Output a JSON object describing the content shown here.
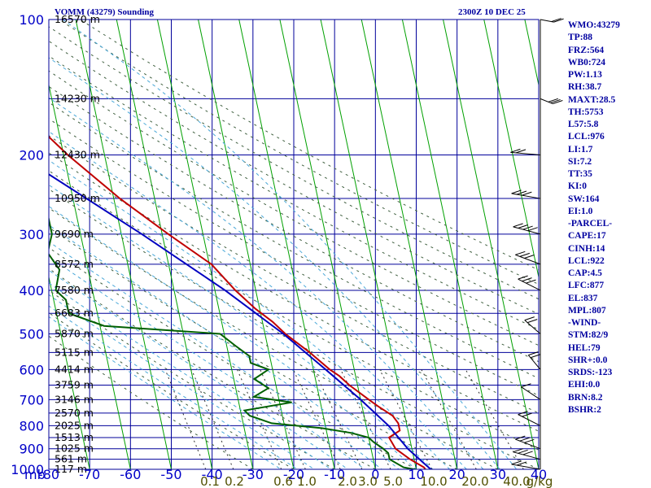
{
  "header": {
    "station": "VOMM (43279) Sounding",
    "time": "2300Z 10 DEC 25"
  },
  "indices": [
    "WMO:43279",
    "TP:88",
    "FRZ:564",
    "WB0:724",
    "PW:1.13",
    "RH:38.7",
    "MAXT:28.5",
    "TH:5753",
    "L57:5.8",
    "LCL:976",
    "LI:1.7",
    "SI:7.2",
    "TT:35",
    "KI:0",
    "SW:164",
    "EI:1.0",
    "-PARCEL-",
    "CAPE:17",
    "CINH:14",
    "LCL:922",
    "CAP:4.5",
    "LFC:877",
    "EL:837",
    "MPL:807",
    "-WIND-",
    "STM:82/9",
    "HEL:79",
    "SHR+:0.0",
    "SRDS:-123",
    "EHI:0.0",
    "BRN:8.2",
    "BSHR:2"
  ],
  "chart_data": {
    "type": "line",
    "title": "VOMM (43279) Sounding",
    "x_ticks": [
      "-80",
      "-70",
      "-60",
      "-50",
      "-40",
      "-30",
      "-20",
      "-10",
      "0",
      "10",
      "20",
      "30",
      "40"
    ],
    "y_ticks": [
      "100",
      "200",
      "300",
      "400",
      "500",
      "600",
      "700",
      "800",
      "900",
      "1000"
    ],
    "y_unit": "mb",
    "xlim": [
      -80,
      40
    ],
    "ylim": [
      100,
      1000
    ],
    "y_scale": "log",
    "height_labels": [
      {
        "p": 100,
        "label": "16570 m"
      },
      {
        "p": 150,
        "label": "14230 m"
      },
      {
        "p": 200,
        "label": "12430 m"
      },
      {
        "p": 250,
        "label": "10950 m"
      },
      {
        "p": 300,
        "label": "9690 m"
      },
      {
        "p": 350,
        "label": "8572 m"
      },
      {
        "p": 400,
        "label": "7580 m"
      },
      {
        "p": 450,
        "label": "6683 m"
      },
      {
        "p": 500,
        "label": "5870 m"
      },
      {
        "p": 550,
        "label": "5115 m"
      },
      {
        "p": 600,
        "label": "4414 m"
      },
      {
        "p": 650,
        "label": "3759 m"
      },
      {
        "p": 700,
        "label": "3146 m"
      },
      {
        "p": 750,
        "label": "2570 m"
      },
      {
        "p": 800,
        "label": "2025 m"
      },
      {
        "p": 850,
        "label": "1513 m"
      },
      {
        "p": 900,
        "label": "1025 m"
      },
      {
        "p": 950,
        "label": "561 m"
      },
      {
        "p": 1000,
        "label": "117 m"
      }
    ],
    "mixing_ratio_labels": [
      "0.1",
      "0.2",
      "0.6",
      "1.0",
      "2.0",
      "3.0",
      "5.0",
      "10.0",
      "20.0",
      "40.0",
      "g/kg"
    ],
    "series": [
      {
        "color": "#c00000",
        "points": [
          [
            100,
            -80
          ],
          [
            150,
            -70.5
          ],
          [
            200,
            -59
          ],
          [
            250,
            -48.5
          ],
          [
            300,
            -38.5
          ],
          [
            350,
            -29.5
          ],
          [
            400,
            -25
          ],
          [
            440,
            -21
          ],
          [
            470,
            -17.5
          ],
          [
            500,
            -15
          ],
          [
            550,
            -10
          ],
          [
            600,
            -6
          ],
          [
            620,
            -4
          ],
          [
            650,
            -2
          ],
          [
            700,
            2
          ],
          [
            725,
            4
          ],
          [
            760,
            7
          ],
          [
            790,
            8
          ],
          [
            820,
            8
          ],
          [
            850,
            5
          ],
          [
            900,
            6
          ],
          [
            950,
            9
          ],
          [
            990,
            12
          ],
          [
            1010,
            12.5
          ]
        ]
      },
      {
        "color": "#006000",
        "points": [
          [
            100,
            -97
          ],
          [
            150,
            -89
          ],
          [
            200,
            -76
          ],
          [
            220,
            -68
          ],
          [
            250,
            -66
          ],
          [
            260,
            -67
          ],
          [
            300,
            -67
          ],
          [
            330,
            -69
          ],
          [
            360,
            -67
          ],
          [
            400,
            -69
          ],
          [
            420,
            -67
          ],
          [
            450,
            -67
          ],
          [
            480,
            -59
          ],
          [
            500,
            -31
          ],
          [
            530,
            -28
          ],
          [
            560,
            -25
          ],
          [
            580,
            -25
          ],
          [
            600,
            -21
          ],
          [
            630,
            -25
          ],
          [
            660,
            -22
          ],
          [
            690,
            -26
          ],
          [
            710,
            -17
          ],
          [
            740,
            -29
          ],
          [
            760,
            -28
          ],
          [
            790,
            -23
          ],
          [
            810,
            -11
          ],
          [
            830,
            -4
          ],
          [
            850,
            0
          ],
          [
            870,
            1
          ],
          [
            900,
            3
          ],
          [
            920,
            4
          ],
          [
            950,
            4
          ],
          [
            990,
            7
          ],
          [
            1010,
            12
          ]
        ]
      },
      {
        "color": "#0000c0",
        "points": [
          [
            100,
            -117
          ],
          [
            200,
            -71
          ],
          [
            300,
            -45
          ],
          [
            400,
            -27.5
          ],
          [
            500,
            -15.5
          ],
          [
            600,
            -7
          ],
          [
            700,
            0
          ],
          [
            800,
            5.5
          ],
          [
            900,
            9
          ],
          [
            976,
            12.5
          ],
          [
            1010,
            14
          ]
        ]
      }
    ],
    "wind_barbs": [
      {
        "p": 100,
        "dir": 260,
        "spd": 10
      },
      {
        "p": 150,
        "dir": 250,
        "spd": 15
      },
      {
        "p": 200,
        "dir": 80,
        "spd": 10
      },
      {
        "p": 250,
        "dir": 70,
        "spd": 15
      },
      {
        "p": 300,
        "dir": 60,
        "spd": 20
      },
      {
        "p": 350,
        "dir": 50,
        "spd": 15
      },
      {
        "p": 400,
        "dir": 40,
        "spd": 15
      },
      {
        "p": 500,
        "dir": 20,
        "spd": 10
      },
      {
        "p": 600,
        "dir": 10,
        "spd": 10
      },
      {
        "p": 700,
        "dir": 30,
        "spd": 5
      },
      {
        "p": 800,
        "dir": 40,
        "spd": 10
      },
      {
        "p": 900,
        "dir": 50,
        "spd": 15
      },
      {
        "p": 950,
        "dir": 60,
        "spd": 15
      },
      {
        "p": 1000,
        "dir": 70,
        "spd": 10
      }
    ],
    "grid": true
  }
}
